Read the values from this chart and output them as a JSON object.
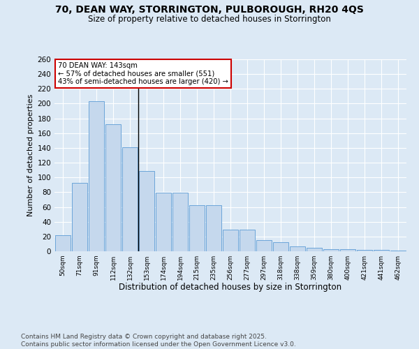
{
  "title_line1": "70, DEAN WAY, STORRINGTON, PULBOROUGH, RH20 4QS",
  "title_line2": "Size of property relative to detached houses in Storrington",
  "xlabel": "Distribution of detached houses by size in Storrington",
  "ylabel": "Number of detached properties",
  "categories": [
    "50sqm",
    "71sqm",
    "91sqm",
    "112sqm",
    "132sqm",
    "153sqm",
    "174sqm",
    "194sqm",
    "215sqm",
    "235sqm",
    "256sqm",
    "277sqm",
    "297sqm",
    "318sqm",
    "338sqm",
    "359sqm",
    "380sqm",
    "400sqm",
    "421sqm",
    "441sqm",
    "462sqm"
  ],
  "values": [
    22,
    93,
    203,
    172,
    141,
    109,
    79,
    79,
    62,
    62,
    29,
    29,
    15,
    12,
    7,
    5,
    3,
    3,
    2,
    2,
    1
  ],
  "bar_color": "#c5d8ed",
  "bar_edge_color": "#5b9bd5",
  "vline_index": 4,
  "annotation_text": "70 DEAN WAY: 143sqm\n← 57% of detached houses are smaller (551)\n43% of semi-detached houses are larger (420) →",
  "ylim": [
    0,
    260
  ],
  "yticks": [
    0,
    20,
    40,
    60,
    80,
    100,
    120,
    140,
    160,
    180,
    200,
    220,
    240,
    260
  ],
  "background_color": "#dce9f5",
  "grid_color": "#ffffff",
  "footer_line1": "Contains HM Land Registry data © Crown copyright and database right 2025.",
  "footer_line2": "Contains public sector information licensed under the Open Government Licence v3.0."
}
